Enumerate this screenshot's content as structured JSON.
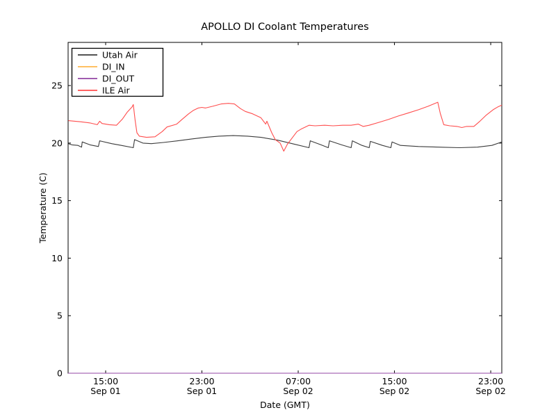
{
  "chart_data": {
    "type": "line",
    "title": "APOLLO DI Coolant Temperatures",
    "xlabel": "Date (GMT)",
    "ylabel": "Temperature (C)",
    "x_unit": "hours since Sep 01 00:00 GMT",
    "xlim": [
      11.88,
      47.92
    ],
    "ylim": [
      0,
      28.75
    ],
    "grid": false,
    "legend_position": "upper left",
    "yticks": [
      {
        "value": 0,
        "label": "0"
      },
      {
        "value": 5,
        "label": "5"
      },
      {
        "value": 10,
        "label": "10"
      },
      {
        "value": 15,
        "label": "15"
      },
      {
        "value": 20,
        "label": "20"
      },
      {
        "value": 25,
        "label": "25"
      }
    ],
    "xticks": [
      {
        "value": 15,
        "time": "15:00",
        "date": "Sep 01"
      },
      {
        "value": 23,
        "time": "23:00",
        "date": "Sep 01"
      },
      {
        "value": 31,
        "time": "07:00",
        "date": "Sep 02"
      },
      {
        "value": 39,
        "time": "15:00",
        "date": "Sep 02"
      },
      {
        "value": 47,
        "time": "23:00",
        "date": "Sep 02"
      }
    ],
    "series": [
      {
        "name": "Utah Air",
        "color": "#3a3a3a",
        "points": [
          [
            11.9,
            19.95
          ],
          [
            12.2,
            19.85
          ],
          [
            12.7,
            19.8
          ],
          [
            13.0,
            19.65
          ],
          [
            13.05,
            20.1
          ],
          [
            13.7,
            19.85
          ],
          [
            14.4,
            19.7
          ],
          [
            14.5,
            20.2
          ],
          [
            15.5,
            19.95
          ],
          [
            16.3,
            19.8
          ],
          [
            17.3,
            19.6
          ],
          [
            17.4,
            20.3
          ],
          [
            18.1,
            20.0
          ],
          [
            18.8,
            19.95
          ],
          [
            19.8,
            20.05
          ],
          [
            21.0,
            20.2
          ],
          [
            22.1,
            20.35
          ],
          [
            23.3,
            20.5
          ],
          [
            24.4,
            20.6
          ],
          [
            25.6,
            20.65
          ],
          [
            26.8,
            20.6
          ],
          [
            27.9,
            20.5
          ],
          [
            29.3,
            20.25
          ],
          [
            30.5,
            19.95
          ],
          [
            31.9,
            19.6
          ],
          [
            32.0,
            20.2
          ],
          [
            32.9,
            19.85
          ],
          [
            33.5,
            19.6
          ],
          [
            33.6,
            20.2
          ],
          [
            34.6,
            19.85
          ],
          [
            35.4,
            19.6
          ],
          [
            35.5,
            20.2
          ],
          [
            36.3,
            19.8
          ],
          [
            36.9,
            19.6
          ],
          [
            37.0,
            20.15
          ],
          [
            38.0,
            19.8
          ],
          [
            38.7,
            19.6
          ],
          [
            38.8,
            20.1
          ],
          [
            39.5,
            19.8
          ],
          [
            41.0,
            19.7
          ],
          [
            42.7,
            19.65
          ],
          [
            44.4,
            19.6
          ],
          [
            45.9,
            19.65
          ],
          [
            47.1,
            19.8
          ],
          [
            47.8,
            20.05
          ],
          [
            47.92,
            20.1
          ]
        ]
      },
      {
        "name": "DI_IN",
        "color": "#ffb84d",
        "points": [
          [
            11.88,
            0
          ],
          [
            47.92,
            0
          ]
        ]
      },
      {
        "name": "DI_OUT",
        "color": "#9345a5",
        "points": [
          [
            11.88,
            0
          ],
          [
            47.92,
            0
          ]
        ]
      },
      {
        "name": "ILE Air",
        "color": "#ff4d4d",
        "points": [
          [
            11.9,
            21.95
          ],
          [
            12.9,
            21.85
          ],
          [
            13.7,
            21.75
          ],
          [
            14.3,
            21.6
          ],
          [
            14.5,
            21.9
          ],
          [
            14.7,
            21.7
          ],
          [
            15.3,
            21.6
          ],
          [
            15.9,
            21.55
          ],
          [
            16.4,
            22.1
          ],
          [
            16.8,
            22.7
          ],
          [
            17.2,
            23.15
          ],
          [
            17.3,
            23.35
          ],
          [
            17.45,
            22.0
          ],
          [
            17.6,
            20.9
          ],
          [
            17.8,
            20.6
          ],
          [
            18.4,
            20.5
          ],
          [
            19.1,
            20.55
          ],
          [
            19.7,
            21.0
          ],
          [
            20.1,
            21.4
          ],
          [
            20.9,
            21.65
          ],
          [
            21.4,
            22.1
          ],
          [
            21.9,
            22.55
          ],
          [
            22.3,
            22.85
          ],
          [
            22.7,
            23.05
          ],
          [
            23.0,
            23.1
          ],
          [
            23.3,
            23.05
          ],
          [
            23.9,
            23.2
          ],
          [
            24.6,
            23.4
          ],
          [
            25.2,
            23.45
          ],
          [
            25.7,
            23.4
          ],
          [
            26.2,
            23.0
          ],
          [
            26.6,
            22.75
          ],
          [
            27.2,
            22.55
          ],
          [
            27.9,
            22.2
          ],
          [
            28.3,
            21.65
          ],
          [
            28.4,
            21.9
          ],
          [
            28.8,
            20.9
          ],
          [
            29.1,
            20.3
          ],
          [
            29.5,
            20.0
          ],
          [
            29.8,
            19.3
          ],
          [
            30.1,
            19.9
          ],
          [
            30.5,
            20.45
          ],
          [
            30.9,
            21.0
          ],
          [
            31.3,
            21.25
          ],
          [
            31.6,
            21.4
          ],
          [
            31.9,
            21.55
          ],
          [
            32.4,
            21.5
          ],
          [
            33.2,
            21.55
          ],
          [
            33.9,
            21.5
          ],
          [
            34.7,
            21.55
          ],
          [
            35.4,
            21.55
          ],
          [
            36.0,
            21.65
          ],
          [
            36.4,
            21.45
          ],
          [
            36.9,
            21.55
          ],
          [
            37.7,
            21.8
          ],
          [
            38.5,
            22.05
          ],
          [
            39.3,
            22.35
          ],
          [
            40.1,
            22.6
          ],
          [
            41.0,
            22.9
          ],
          [
            41.8,
            23.2
          ],
          [
            42.6,
            23.55
          ],
          [
            42.8,
            22.6
          ],
          [
            43.1,
            21.6
          ],
          [
            43.6,
            21.5
          ],
          [
            44.2,
            21.45
          ],
          [
            44.6,
            21.35
          ],
          [
            45.0,
            21.45
          ],
          [
            45.6,
            21.45
          ],
          [
            46.1,
            21.9
          ],
          [
            46.6,
            22.4
          ],
          [
            47.2,
            22.9
          ],
          [
            47.6,
            23.15
          ],
          [
            47.92,
            23.3
          ]
        ]
      }
    ]
  }
}
